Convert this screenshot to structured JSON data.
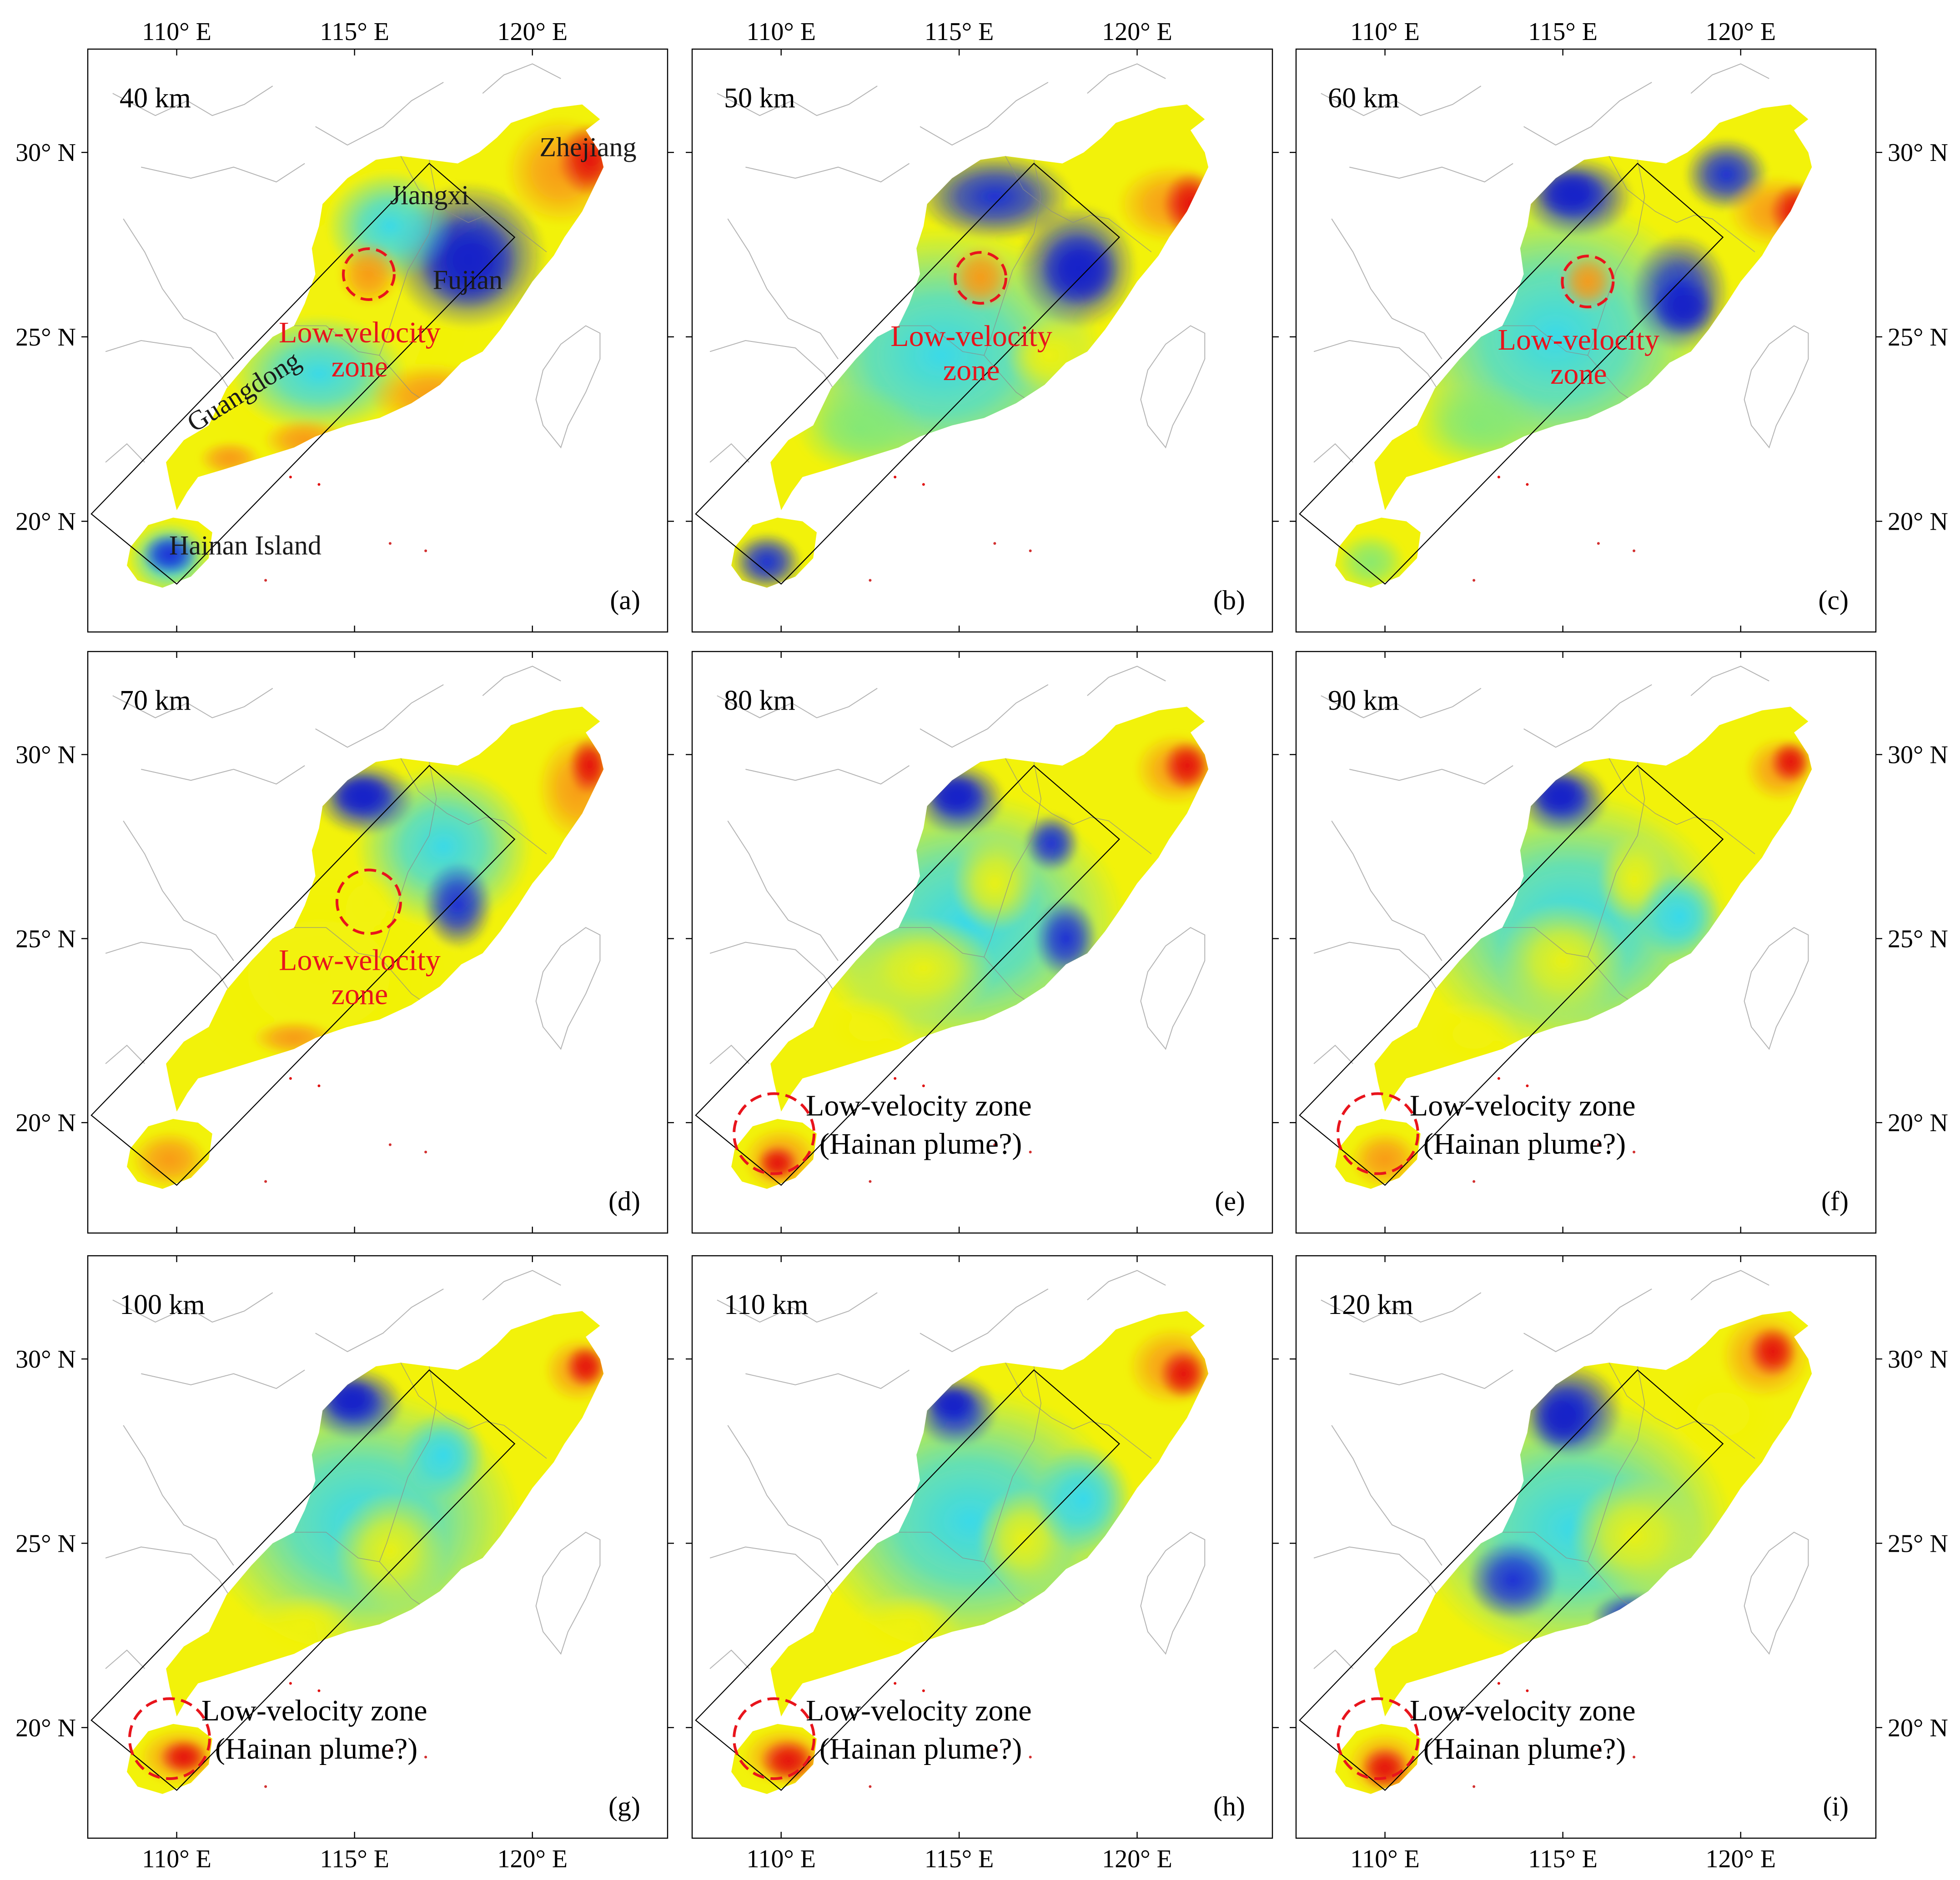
{
  "figure": {
    "description_type": "multi-panel velocity tomography maps of SE China",
    "axis": {
      "lon_range": [
        107.5,
        123.8
      ],
      "lat_range": [
        17.0,
        32.8
      ],
      "lon_ticks": [
        110,
        115,
        120
      ],
      "lat_ticks": [
        20,
        25,
        30
      ],
      "lon_tick_labels": [
        "110° E",
        "115° E",
        "120° E"
      ],
      "lat_tick_labels": [
        "20° N",
        "25° N",
        "30° N"
      ]
    },
    "colors": {
      "low_velocity": "#e01010",
      "mid_velocity": "#f2f20a",
      "high_velocity": "#1030d8",
      "annotation_red": "#e8141c",
      "boundary_gray": "#b4b4b4",
      "frame": "#000000"
    }
  },
  "chart_data": [
    {
      "type": "heatmap",
      "panel": "(a)",
      "depth": "40 km",
      "region_labels": [
        "Zhejiang",
        "Jiangxi",
        "Fujian",
        "Guangdong",
        "Hainan Island"
      ],
      "annotation": "Low-velocity zone",
      "annotation_lines": [
        "Low-velocity",
        "zone"
      ],
      "circle_center": [
        115.4,
        26.7
      ]
    },
    {
      "type": "heatmap",
      "panel": "(b)",
      "depth": "50 km",
      "annotation": "Low-velocity zone",
      "annotation_lines": [
        "Low-velocity",
        "zone"
      ],
      "circle_center": [
        115.6,
        26.6
      ]
    },
    {
      "type": "heatmap",
      "panel": "(c)",
      "depth": "60 km",
      "annotation": "Low-velocity zone",
      "annotation_lines": [
        "Low-velocity",
        "zone"
      ],
      "circle_center": [
        115.7,
        26.5
      ]
    },
    {
      "type": "heatmap",
      "panel": "(d)",
      "depth": "70 km",
      "annotation": "Low-velocity zone",
      "annotation_lines": [
        "Low-velocity",
        "zone"
      ],
      "circle_center": [
        115.4,
        26.0
      ]
    },
    {
      "type": "heatmap",
      "panel": "(e)",
      "depth": "80 km",
      "annotation": "Low-velocity zone (Hainan plume?)",
      "annotation_lines": [
        "Low-velocity zone",
        "(Hainan plume?)"
      ],
      "circle_center": [
        109.8,
        19.7
      ]
    },
    {
      "type": "heatmap",
      "panel": "(f)",
      "depth": "90 km",
      "annotation": "Low-velocity zone (Hainan plume?)",
      "annotation_lines": [
        "Low-velocity zone",
        "(Hainan plume?)"
      ],
      "circle_center": [
        109.8,
        19.7
      ]
    },
    {
      "type": "heatmap",
      "panel": "(g)",
      "depth": "100 km",
      "annotation": "Low-velocity zone (Hainan plume?)",
      "annotation_lines": [
        "Low-velocity zone",
        "(Hainan plume?)"
      ],
      "circle_center": [
        109.8,
        19.7
      ]
    },
    {
      "type": "heatmap",
      "panel": "(h)",
      "depth": "110 km",
      "annotation": "Low-velocity zone (Hainan plume?)",
      "annotation_lines": [
        "Low-velocity zone",
        "(Hainan plume?)"
      ],
      "circle_center": [
        109.8,
        19.7
      ]
    },
    {
      "type": "heatmap",
      "panel": "(i)",
      "depth": "120 km",
      "annotation": "Low-velocity zone (Hainan plume?)",
      "annotation_lines": [
        "Low-velocity zone",
        "(Hainan plume?)"
      ],
      "circle_center": [
        109.8,
        19.7
      ]
    }
  ]
}
